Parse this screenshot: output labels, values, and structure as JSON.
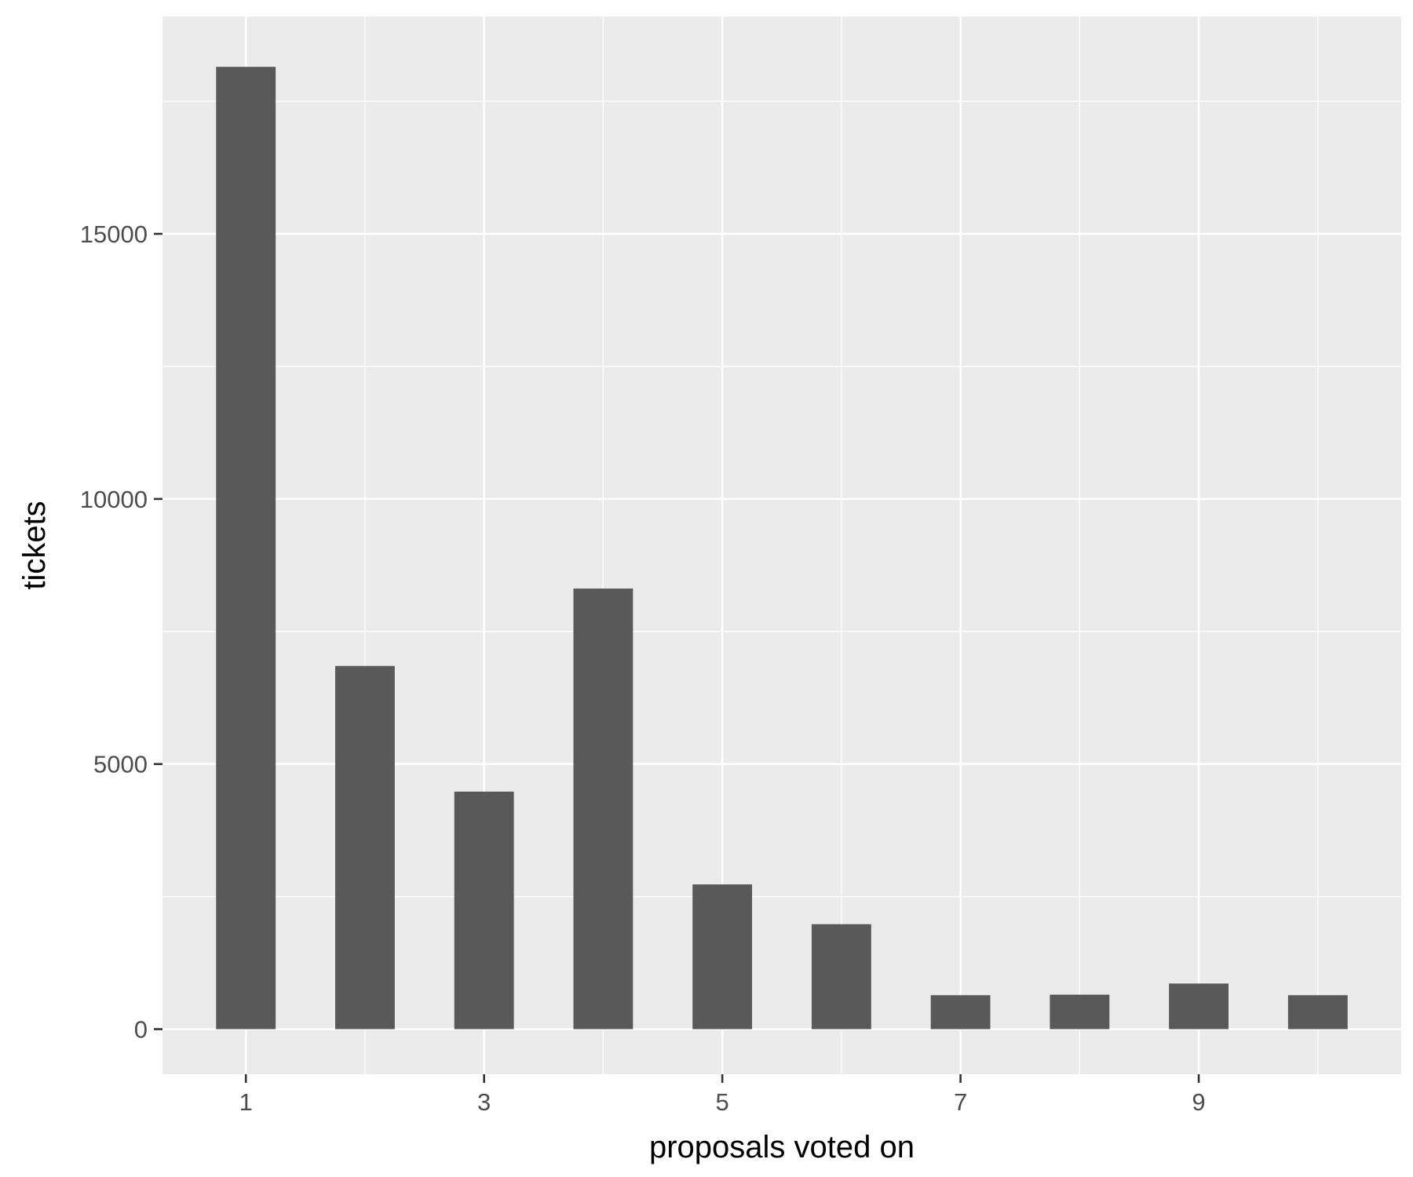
{
  "chart_data": {
    "type": "bar",
    "x": [
      1,
      2,
      3,
      4,
      5,
      6,
      7,
      8,
      9,
      10
    ],
    "values": [
      18150,
      6850,
      4480,
      8310,
      2730,
      1980,
      640,
      650,
      860,
      640
    ],
    "title": "",
    "xlabel": "proposals voted on",
    "ylabel": "tickets",
    "xlim": [
      0.3,
      10.7
    ],
    "ylim": [
      -850,
      19100
    ],
    "x_ticks": [
      1,
      3,
      5,
      7,
      9
    ],
    "x_tick_labels": [
      "1",
      "3",
      "5",
      "7",
      "9"
    ],
    "y_ticks": [
      0,
      5000,
      10000,
      15000
    ],
    "y_tick_labels": [
      "0",
      "5000",
      "10000",
      "15000"
    ],
    "grid": true,
    "legend": "none",
    "colors": {
      "bar": "#595959",
      "panel": "#ebebeb",
      "grid": "#ffffff",
      "tick_text": "#4d4d4d",
      "tick_mark": "#333333"
    }
  }
}
